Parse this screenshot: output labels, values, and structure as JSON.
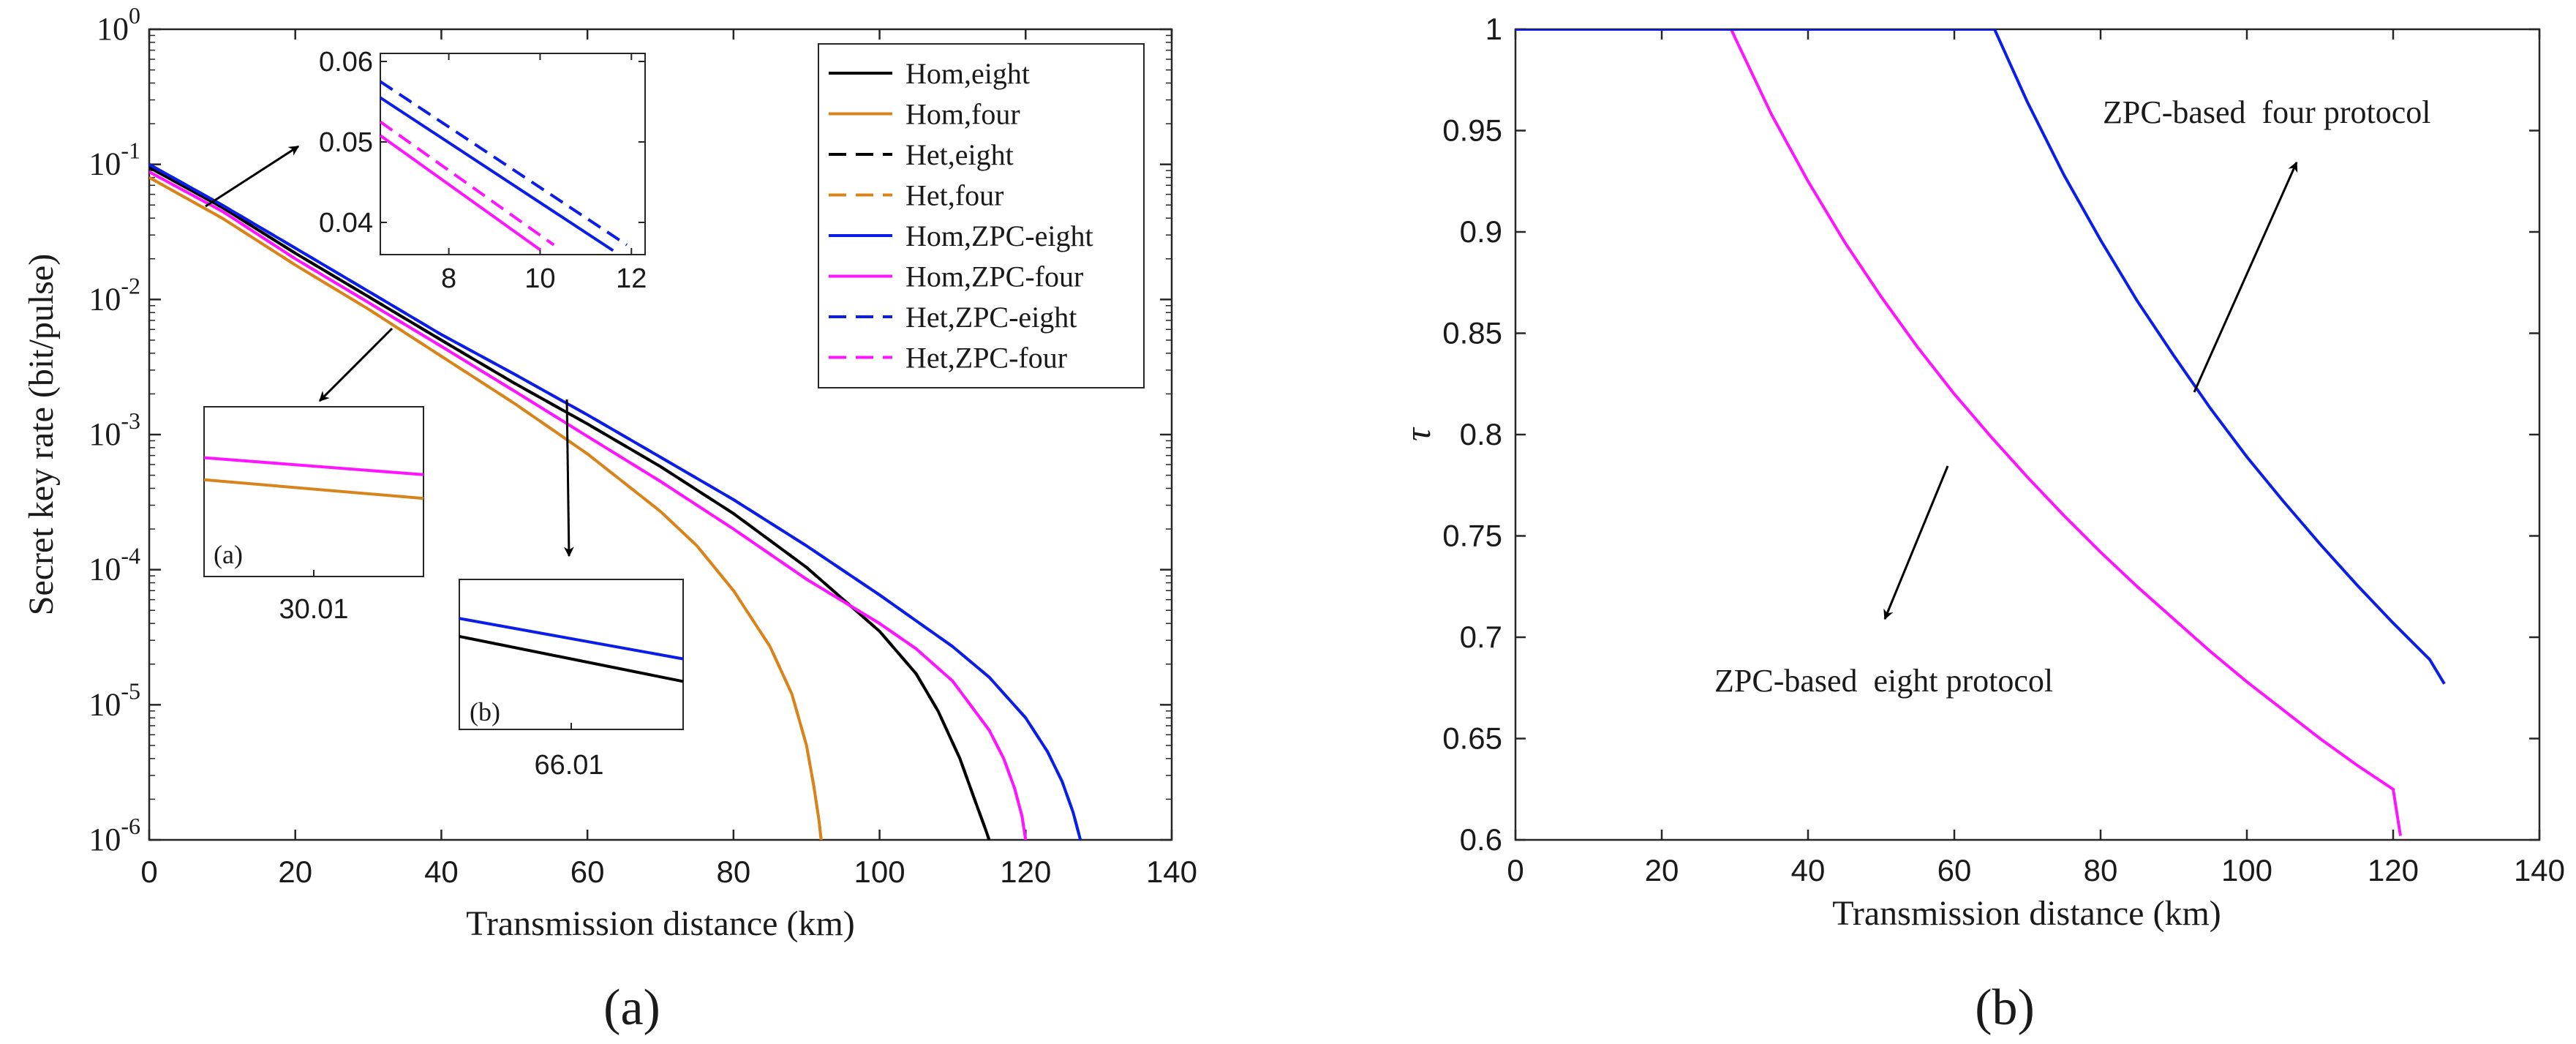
{
  "figure": {
    "panels": [
      {
        "caption_letter": "a"
      },
      {
        "caption_letter": "b"
      }
    ]
  },
  "colors": {
    "hom_eight": "#000000",
    "hom_four": "#d8841a",
    "zpc_eight": "#0b1de8",
    "zpc_four": "#ff14ff",
    "axis": "#262626"
  },
  "chart_data": [
    {
      "id": "a",
      "type": "line",
      "caption": "(a)",
      "xlabel": "Transmission distance (km)",
      "ylabel": "Secret key rate (bit/pulse)",
      "xlim": [
        0,
        140
      ],
      "ylim": [
        1e-06,
        1
      ],
      "yscale": "log",
      "xticks": [
        0,
        20,
        40,
        60,
        80,
        100,
        120,
        140
      ],
      "ytick_exponents": [
        0,
        -1,
        -2,
        -3,
        -4,
        -5,
        -6
      ],
      "legend_position": "top-right",
      "series": [
        {
          "name": "Hom,eight",
          "color_key": "hom_eight",
          "style": "solid",
          "x": [
            0,
            10,
            20,
            30,
            40,
            50,
            60,
            70,
            80,
            90,
            100,
            105,
            108,
            111,
            113,
            114.5,
            115
          ],
          "y": [
            0.095,
            0.048,
            0.022,
            0.0105,
            0.005,
            0.0024,
            0.0012,
            0.00058,
            0.00026,
            0.000104,
            3.5e-05,
            1.7e-05,
            9e-06,
            4e-06,
            2e-06,
            1.2e-06,
            1e-06
          ]
        },
        {
          "name": "Hom,four",
          "color_key": "hom_four",
          "style": "solid",
          "x": [
            0,
            10,
            20,
            30,
            40,
            50,
            60,
            70,
            75,
            80,
            85,
            88,
            90,
            91,
            91.7,
            92
          ],
          "y": [
            0.08,
            0.04,
            0.018,
            0.0085,
            0.0038,
            0.0017,
            0.00072,
            0.00027,
            0.00015,
            7e-05,
            2.7e-05,
            1.2e-05,
            5e-06,
            2.5e-06,
            1.4e-06,
            1e-06
          ]
        },
        {
          "name": "Het,eight",
          "color_key": "hom_eight",
          "style": "dashed",
          "x": [
            0,
            10,
            20,
            30,
            40,
            50,
            60,
            70,
            80,
            90,
            100,
            105,
            108,
            111,
            113,
            114.5,
            115
          ],
          "y": [
            0.095,
            0.048,
            0.022,
            0.0105,
            0.005,
            0.0024,
            0.0012,
            0.00058,
            0.00026,
            0.000104,
            3.5e-05,
            1.7e-05,
            9e-06,
            4e-06,
            2e-06,
            1.2e-06,
            1e-06
          ]
        },
        {
          "name": "Het,four",
          "color_key": "hom_four",
          "style": "dashed",
          "x": [
            0,
            10,
            20,
            30,
            40,
            50,
            60,
            70,
            75,
            80,
            85,
            88,
            90,
            91,
            91.7,
            92
          ],
          "y": [
            0.08,
            0.04,
            0.018,
            0.0085,
            0.0038,
            0.0017,
            0.00072,
            0.00027,
            0.00015,
            7e-05,
            2.7e-05,
            1.2e-05,
            5e-06,
            2.5e-06,
            1.4e-06,
            1e-06
          ]
        },
        {
          "name": "Hom,ZPC-eight",
          "color_key": "zpc_eight",
          "style": "solid",
          "x": [
            0,
            10,
            20,
            30,
            40,
            50,
            60,
            70,
            80,
            90,
            100,
            110,
            115,
            120,
            123,
            125,
            126.5,
            127.5
          ],
          "y": [
            0.1,
            0.05,
            0.024,
            0.0115,
            0.0055,
            0.0028,
            0.0014,
            0.00068,
            0.00033,
            0.00015,
            6.5e-05,
            2.7e-05,
            1.6e-05,
            8e-06,
            4.5e-06,
            2.7e-06,
            1.6e-06,
            1e-06
          ]
        },
        {
          "name": "Hom,ZPC-four",
          "color_key": "zpc_four",
          "style": "solid",
          "x": [
            0,
            10,
            20,
            30,
            40,
            50,
            60,
            70,
            80,
            90,
            100,
            105,
            110,
            115,
            117,
            118.5,
            119.5,
            120
          ],
          "y": [
            0.088,
            0.045,
            0.02,
            0.0095,
            0.0045,
            0.0021,
            0.00097,
            0.00045,
            0.0002,
            8.5e-05,
            4e-05,
            2.6e-05,
            1.5e-05,
            6.5e-06,
            4e-06,
            2.4e-06,
            1.5e-06,
            1e-06
          ]
        },
        {
          "name": "Het,ZPC-eight",
          "color_key": "zpc_eight",
          "style": "dashed",
          "x": [
            0,
            10,
            20,
            30,
            40,
            50,
            60,
            70,
            80,
            90,
            100,
            110,
            115,
            120,
            123,
            125,
            126.5,
            127.5
          ],
          "y": [
            0.1,
            0.05,
            0.024,
            0.0115,
            0.0055,
            0.0028,
            0.0014,
            0.00068,
            0.00033,
            0.00015,
            6.5e-05,
            2.7e-05,
            1.6e-05,
            8e-06,
            4.5e-06,
            2.7e-06,
            1.6e-06,
            1e-06
          ]
        },
        {
          "name": "Het,ZPC-four",
          "color_key": "zpc_four",
          "style": "dashed",
          "x": [
            0,
            10,
            20,
            30,
            40,
            50,
            60,
            70,
            80,
            90,
            100,
            105,
            110,
            115,
            117,
            118.5,
            119.5,
            120
          ],
          "y": [
            0.088,
            0.045,
            0.02,
            0.0095,
            0.0045,
            0.0021,
            0.00097,
            0.00045,
            0.0002,
            8.5e-05,
            4e-05,
            2.6e-05,
            1.5e-05,
            6.5e-06,
            4e-06,
            2.4e-06,
            1.5e-06,
            1e-06
          ]
        }
      ],
      "insets": [
        {
          "id": "inset-top",
          "type": "line",
          "xlim": [
            6.5,
            12.3
          ],
          "ylim": [
            0.036,
            0.061
          ],
          "xticks": [
            8,
            10,
            12
          ],
          "yticks": [
            0.04,
            0.05,
            0.06
          ],
          "ytick_labels": [
            "0.04",
            "0.05",
            "0.06"
          ],
          "series": [
            {
              "name": "Het,ZPC-eight",
              "color_key": "zpc_eight",
              "style": "dashed",
              "x": [
                6.5,
                11.9
              ],
              "y": [
                0.0575,
                0.0372
              ]
            },
            {
              "name": "Hom,ZPC-eight",
              "color_key": "zpc_eight",
              "style": "solid",
              "x": [
                6.5,
                11.6
              ],
              "y": [
                0.0555,
                0.0365
              ]
            },
            {
              "name": "Het,ZPC-four",
              "color_key": "zpc_four",
              "style": "dashed",
              "x": [
                6.5,
                10.3
              ],
              "y": [
                0.0525,
                0.0372
              ]
            },
            {
              "name": "Hom,ZPC-four",
              "color_key": "zpc_four",
              "style": "solid",
              "x": [
                6.5,
                10.0
              ],
              "y": [
                0.0508,
                0.0366
              ]
            }
          ]
        },
        {
          "id": "inset-a",
          "type": "line",
          "label": "(a)",
          "xtick_label": "30.01",
          "xlim": [
            0,
            1
          ],
          "ylim": [
            0,
            1
          ],
          "series": [
            {
              "name": "Hom,ZPC-four",
              "color_key": "zpc_four",
              "style": "solid",
              "x": [
                0,
                1
              ],
              "y": [
                0.7,
                0.6
              ]
            },
            {
              "name": "Hom,four",
              "color_key": "hom_four",
              "style": "solid",
              "x": [
                0,
                1
              ],
              "y": [
                0.57,
                0.46
              ]
            }
          ]
        },
        {
          "id": "inset-b",
          "type": "line",
          "label": "(b)",
          "xtick_label": "66.01",
          "xlim": [
            0,
            1
          ],
          "ylim": [
            0,
            1
          ],
          "series": [
            {
              "name": "Hom,ZPC-eight",
              "color_key": "zpc_eight",
              "style": "solid",
              "x": [
                0,
                1
              ],
              "y": [
                0.74,
                0.47
              ]
            },
            {
              "name": "Hom,eight",
              "color_key": "hom_eight",
              "style": "solid",
              "x": [
                0,
                1
              ],
              "y": [
                0.62,
                0.32
              ]
            }
          ]
        }
      ]
    },
    {
      "id": "b",
      "type": "line",
      "caption": "(b)",
      "xlabel": "Transmission distance (km)",
      "ylabel": "τ",
      "xlim": [
        0,
        140
      ],
      "ylim": [
        0.6,
        1
      ],
      "xticks": [
        0,
        20,
        40,
        60,
        80,
        100,
        120,
        140
      ],
      "yticks": [
        0.6,
        0.65,
        0.7,
        0.75,
        0.8,
        0.85,
        0.9,
        0.95,
        1
      ],
      "ytick_labels": [
        "0.6",
        "0.65",
        "0.7",
        "0.75",
        "0.8",
        "0.85",
        "0.9",
        "0.95",
        "1"
      ],
      "series": [
        {
          "name": "ZPC-based eight protocol",
          "color_key": "zpc_four",
          "x": [
            0,
            29.5,
            30,
            35,
            40,
            45,
            50,
            55,
            60,
            65,
            70,
            75,
            80,
            85,
            90,
            95,
            100,
            105,
            110,
            115,
            120,
            121
          ],
          "y": [
            1,
            1,
            0.996,
            0.958,
            0.925,
            0.895,
            0.868,
            0.843,
            0.82,
            0.799,
            0.779,
            0.76,
            0.742,
            0.725,
            0.709,
            0.693,
            0.678,
            0.664,
            0.65,
            0.637,
            0.625,
            0.602
          ]
        },
        {
          "name": "ZPC-based four protocol",
          "color_key": "zpc_eight",
          "x": [
            0,
            65.5,
            66,
            70,
            75,
            80,
            85,
            90,
            95,
            100,
            105,
            110,
            115,
            120,
            125,
            127
          ],
          "y": [
            1,
            1,
            0.996,
            0.964,
            0.928,
            0.896,
            0.866,
            0.839,
            0.813,
            0.789,
            0.767,
            0.746,
            0.726,
            0.707,
            0.689,
            0.677
          ]
        }
      ],
      "annotations": [
        {
          "text": "ZPC-based  four protocol",
          "target": "ZPC-based four protocol"
        },
        {
          "text": "ZPC-based  eight protocol",
          "target": "ZPC-based eight protocol"
        }
      ]
    }
  ]
}
